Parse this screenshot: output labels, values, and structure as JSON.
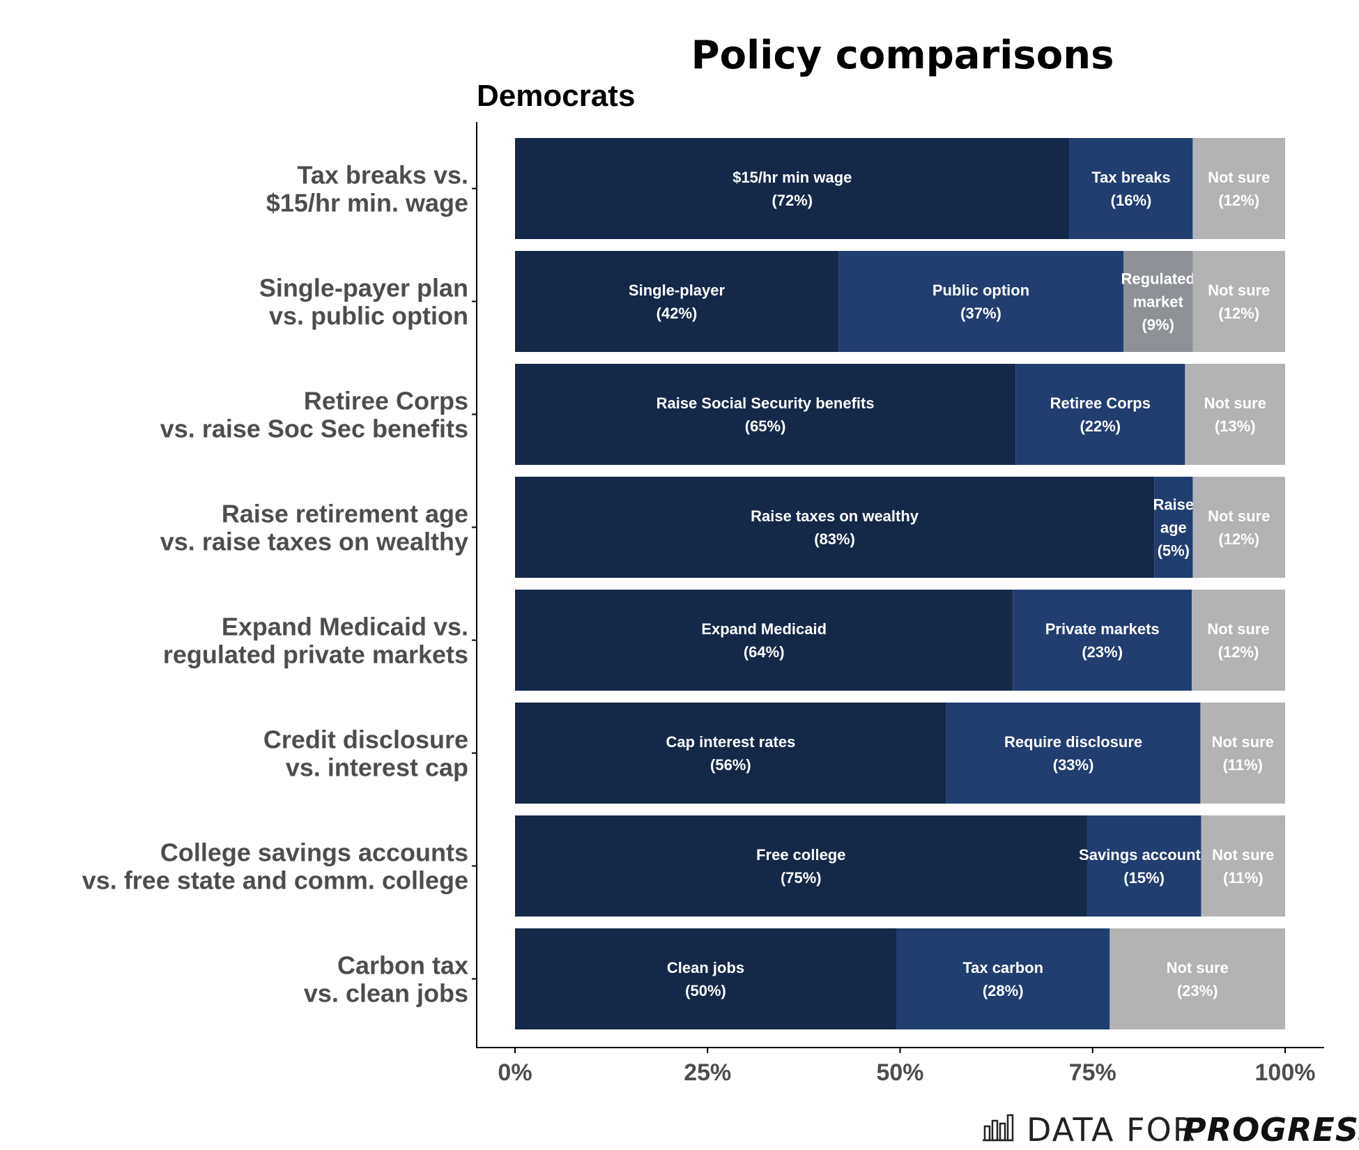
{
  "brand": {
    "light": "DATA FOR",
    "bold": "PROGRESS",
    "icon": "bar-chart-logo-icon"
  },
  "chart_data": {
    "type": "bar",
    "orientation": "horizontal-stacked",
    "title": "Policy comparisons",
    "subtitle": "Democrats",
    "xlim": [
      0,
      100
    ],
    "x_ticks": [
      "0%",
      "25%",
      "50%",
      "75%",
      "100%"
    ],
    "grid": false,
    "colors": {
      "first": "#15284a",
      "second": "#203e70",
      "regulated": "#8e9297",
      "not_sure": "#b3b3b3"
    },
    "categories": [
      {
        "label": [
          "Tax breaks vs.",
          "$15/hr min. wage"
        ],
        "segments": [
          {
            "label": [
              "$15/hr min wage",
              "(72%)"
            ],
            "value": 72,
            "color": "first"
          },
          {
            "label": [
              "Tax breaks",
              "(16%)"
            ],
            "value": 16,
            "color": "second"
          },
          {
            "label": [
              "Not sure",
              "(12%)"
            ],
            "value": 12,
            "color": "not_sure"
          }
        ]
      },
      {
        "label": [
          "Single-payer plan",
          "vs. public option"
        ],
        "segments": [
          {
            "label": [
              "Single-player",
              "(42%)"
            ],
            "value": 42,
            "color": "first"
          },
          {
            "label": [
              "Public option",
              "(37%)"
            ],
            "value": 37,
            "color": "second"
          },
          {
            "label": [
              "Regulated",
              "market",
              "(9%)"
            ],
            "value": 9,
            "color": "regulated"
          },
          {
            "label": [
              "Not sure",
              "(12%)"
            ],
            "value": 12,
            "color": "not_sure"
          }
        ]
      },
      {
        "label": [
          "Retiree Corps",
          "vs. raise Soc Sec benefits"
        ],
        "segments": [
          {
            "label": [
              "Raise Social Security benefits",
              "(65%)"
            ],
            "value": 65,
            "color": "first"
          },
          {
            "label": [
              "Retiree Corps",
              "(22%)"
            ],
            "value": 22,
            "color": "second"
          },
          {
            "label": [
              "Not sure",
              "(13%)"
            ],
            "value": 13,
            "color": "not_sure"
          }
        ]
      },
      {
        "label": [
          "Raise retirement age",
          "vs. raise taxes on wealthy"
        ],
        "segments": [
          {
            "label": [
              "Raise taxes on wealthy",
              "(83%)"
            ],
            "value": 83,
            "color": "first"
          },
          {
            "label": [
              "Raise",
              "age",
              "(5%)"
            ],
            "value": 5,
            "color": "second"
          },
          {
            "label": [
              "Not sure",
              "(12%)"
            ],
            "value": 12,
            "color": "not_sure"
          }
        ]
      },
      {
        "label": [
          "Expand Medicaid vs.",
          "regulated private markets"
        ],
        "segments": [
          {
            "label": [
              "Expand Medicaid",
              "(64%)"
            ],
            "value": 64,
            "color": "first"
          },
          {
            "label": [
              "Private markets",
              "(23%)"
            ],
            "value": 23,
            "color": "second"
          },
          {
            "label": [
              "Not sure",
              "(12%)"
            ],
            "value": 12,
            "color": "not_sure"
          }
        ]
      },
      {
        "label": [
          "Credit disclosure",
          "vs. interest cap"
        ],
        "segments": [
          {
            "label": [
              "Cap interest rates",
              "(56%)"
            ],
            "value": 56,
            "color": "first"
          },
          {
            "label": [
              "Require disclosure",
              "(33%)"
            ],
            "value": 33,
            "color": "second"
          },
          {
            "label": [
              "Not sure",
              "(11%)"
            ],
            "value": 11,
            "color": "not_sure"
          }
        ]
      },
      {
        "label": [
          "College savings accounts",
          "vs. free state and comm. college"
        ],
        "segments": [
          {
            "label": [
              "Free college",
              "(75%)"
            ],
            "value": 75,
            "color": "first"
          },
          {
            "label": [
              "Savings accounts",
              "(15%)"
            ],
            "value": 15,
            "color": "second"
          },
          {
            "label": [
              "Not sure",
              "(11%)"
            ],
            "value": 11,
            "color": "not_sure"
          }
        ]
      },
      {
        "label": [
          "Carbon tax",
          "vs. clean jobs"
        ],
        "segments": [
          {
            "label": [
              "Clean jobs",
              "(50%)"
            ],
            "value": 50,
            "color": "first"
          },
          {
            "label": [
              "Tax carbon",
              "(28%)"
            ],
            "value": 28,
            "color": "second"
          },
          {
            "label": [
              "Not sure",
              "(23%)"
            ],
            "value": 23,
            "color": "not_sure"
          }
        ]
      }
    ]
  }
}
